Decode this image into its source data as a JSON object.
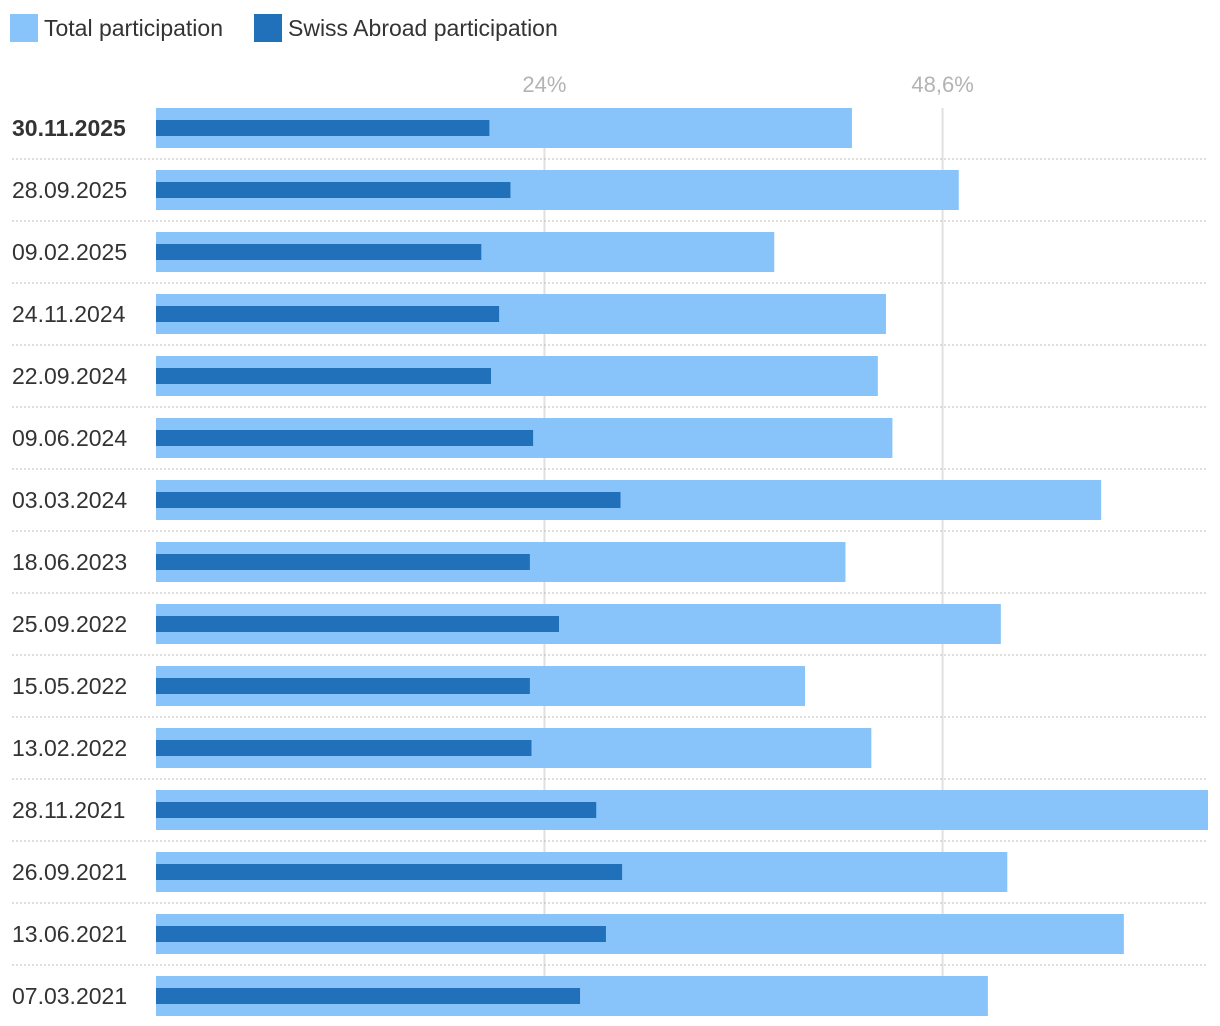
{
  "colors": {
    "total": "#88c3f9",
    "abroad": "#2070ba",
    "gridline": "#e0e0e0",
    "divider": "#bdbdbd",
    "tick_text": "#b3b3b3",
    "label_text": "#333333"
  },
  "chart_data": {
    "type": "bar",
    "orientation": "horizontal",
    "legend_position": "top-left",
    "grid": true,
    "xlim": [
      0,
      65
    ],
    "ticks": [
      {
        "value": 24,
        "label": "24%"
      },
      {
        "value": 48.6,
        "label": "48,6%"
      }
    ],
    "categories": [
      "30.11.2025",
      "28.09.2025",
      "09.02.2025",
      "24.11.2024",
      "22.09.2024",
      "09.06.2024",
      "03.03.2024",
      "18.06.2023",
      "25.09.2022",
      "15.05.2022",
      "13.02.2022",
      "28.11.2021",
      "26.09.2021",
      "13.06.2021",
      "07.03.2021"
    ],
    "highlight_category": "30.11.2025",
    "series": [
      {
        "name": "Total participation",
        "color": "#88c3f9",
        "values": [
          43.0,
          49.6,
          38.2,
          45.1,
          44.6,
          45.5,
          58.4,
          42.6,
          52.2,
          40.1,
          44.2,
          65.3,
          52.6,
          59.8,
          51.4
        ]
      },
      {
        "name": "Swiss Abroad participation",
        "color": "#2070ba",
        "values": [
          20.6,
          21.9,
          20.1,
          21.2,
          20.7,
          23.3,
          28.7,
          23.1,
          24.9,
          23.1,
          23.2,
          27.2,
          28.8,
          27.8,
          26.2
        ]
      }
    ]
  }
}
